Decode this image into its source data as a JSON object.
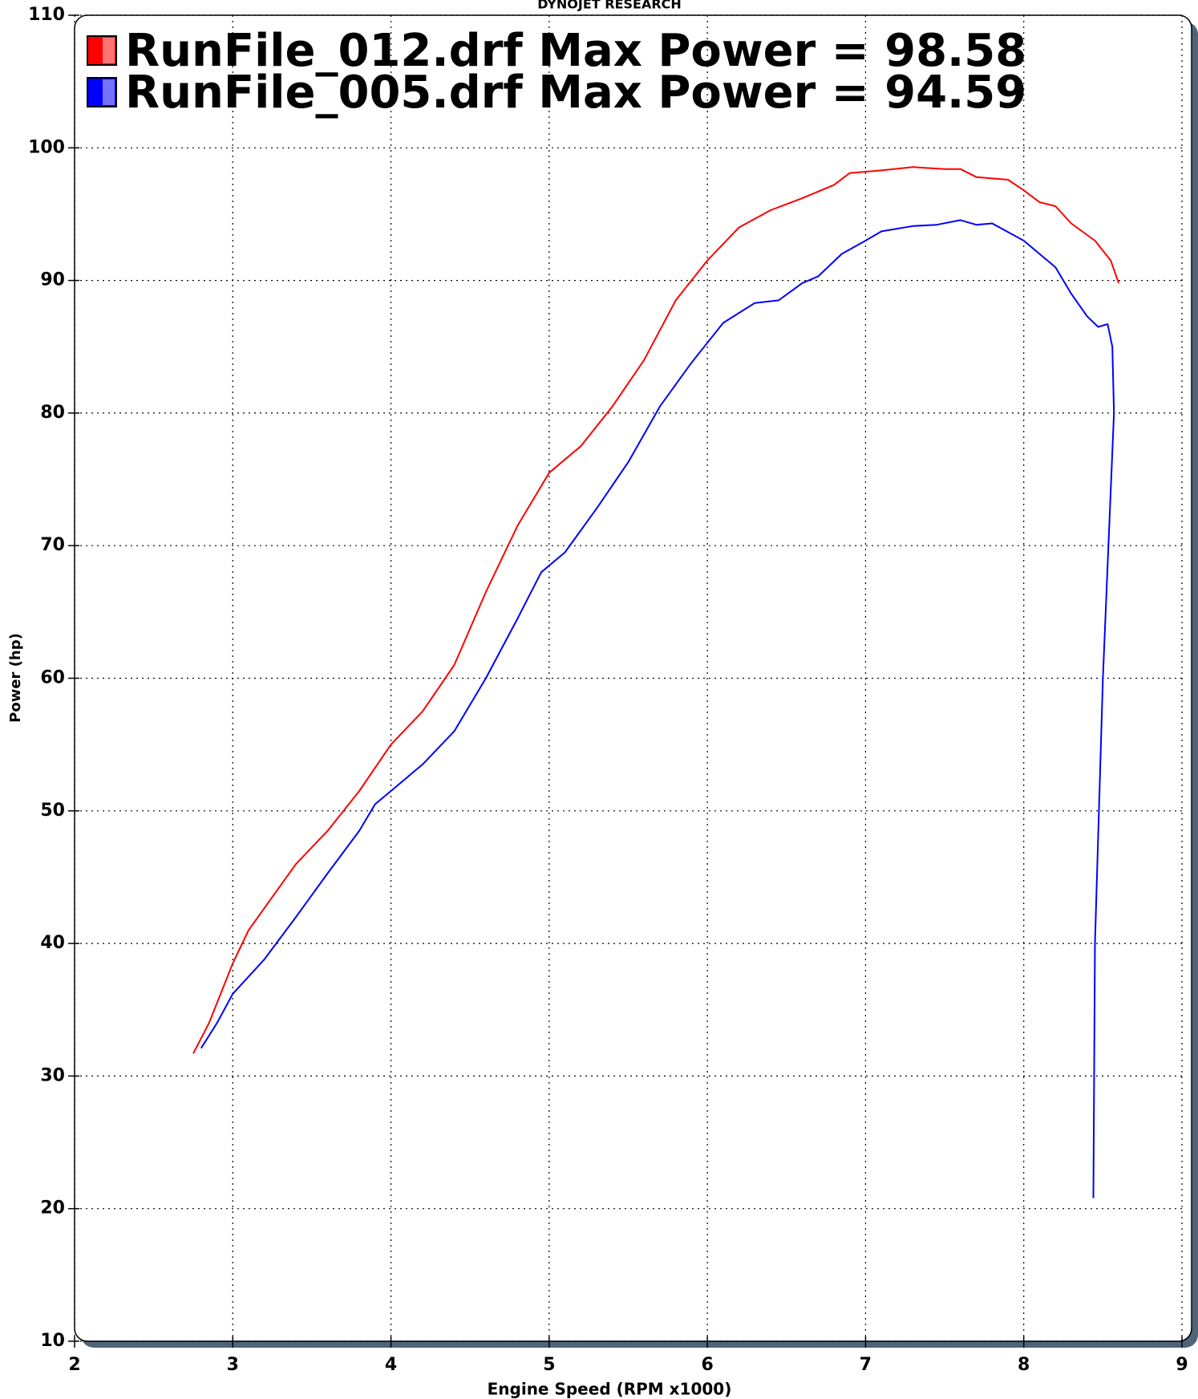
{
  "chart_data": {
    "type": "line",
    "title": "DYNOJET RESEARCH",
    "x_label": "Engine Speed (RPM x1000)",
    "y_label": "Power (hp)",
    "xlim": [
      2,
      9
    ],
    "ylim": [
      10,
      110
    ],
    "xticks": [
      2,
      3,
      4,
      5,
      6,
      7,
      8,
      9
    ],
    "yticks": [
      10,
      20,
      30,
      40,
      50,
      60,
      70,
      80,
      90,
      100,
      110
    ],
    "grid": true,
    "legend": "top-left",
    "series": [
      {
        "name": "RunFile_012.drf Max Power = 98.58",
        "color": "#ff0000",
        "x": [
          2.75,
          2.85,
          3.0,
          3.1,
          3.25,
          3.4,
          3.6,
          3.8,
          4.0,
          4.2,
          4.4,
          4.6,
          4.8,
          5.0,
          5.2,
          5.4,
          5.6,
          5.8,
          6.0,
          6.2,
          6.4,
          6.6,
          6.8,
          6.9,
          7.1,
          7.3,
          7.5,
          7.6,
          7.7,
          7.9,
          8.0,
          8.1,
          8.2,
          8.3,
          8.45,
          8.55,
          8.6
        ],
        "values": [
          31.7,
          34,
          38.5,
          41,
          43.5,
          46,
          48.5,
          51.5,
          55,
          57.5,
          61,
          66.5,
          71.5,
          75.5,
          77.5,
          80.5,
          84,
          88.5,
          91.5,
          94,
          95.3,
          96.2,
          97.2,
          98.1,
          98.3,
          98.55,
          98.4,
          98.4,
          97.8,
          97.6,
          96.8,
          95.9,
          95.6,
          94.3,
          93,
          91.5,
          89.8
        ]
      },
      {
        "name": "RunFile_005.drf Max Power = 94.59",
        "color": "#0000ff",
        "x": [
          2.8,
          2.9,
          3.0,
          3.2,
          3.4,
          3.6,
          3.8,
          3.9,
          4.0,
          4.2,
          4.4,
          4.6,
          4.8,
          4.95,
          5.1,
          5.3,
          5.5,
          5.7,
          5.9,
          6.1,
          6.3,
          6.45,
          6.6,
          6.7,
          6.85,
          7.0,
          7.1,
          7.3,
          7.45,
          7.6,
          7.7,
          7.8,
          8.0,
          8.2,
          8.3,
          8.4,
          8.47,
          8.53,
          8.56,
          8.57,
          8.5,
          8.45,
          8.44
        ],
        "values": [
          32.1,
          34,
          36.2,
          38.8,
          42,
          45.3,
          48.5,
          50.5,
          51.5,
          53.5,
          56,
          60,
          64.5,
          68,
          69.5,
          72.8,
          76.3,
          80.5,
          83.8,
          86.8,
          88.3,
          88.5,
          89.8,
          90.3,
          92,
          93,
          93.7,
          94.1,
          94.2,
          94.55,
          94.2,
          94.3,
          93,
          91,
          89,
          87.3,
          86.5,
          86.7,
          85,
          80,
          60,
          40,
          20.8
        ]
      }
    ]
  }
}
